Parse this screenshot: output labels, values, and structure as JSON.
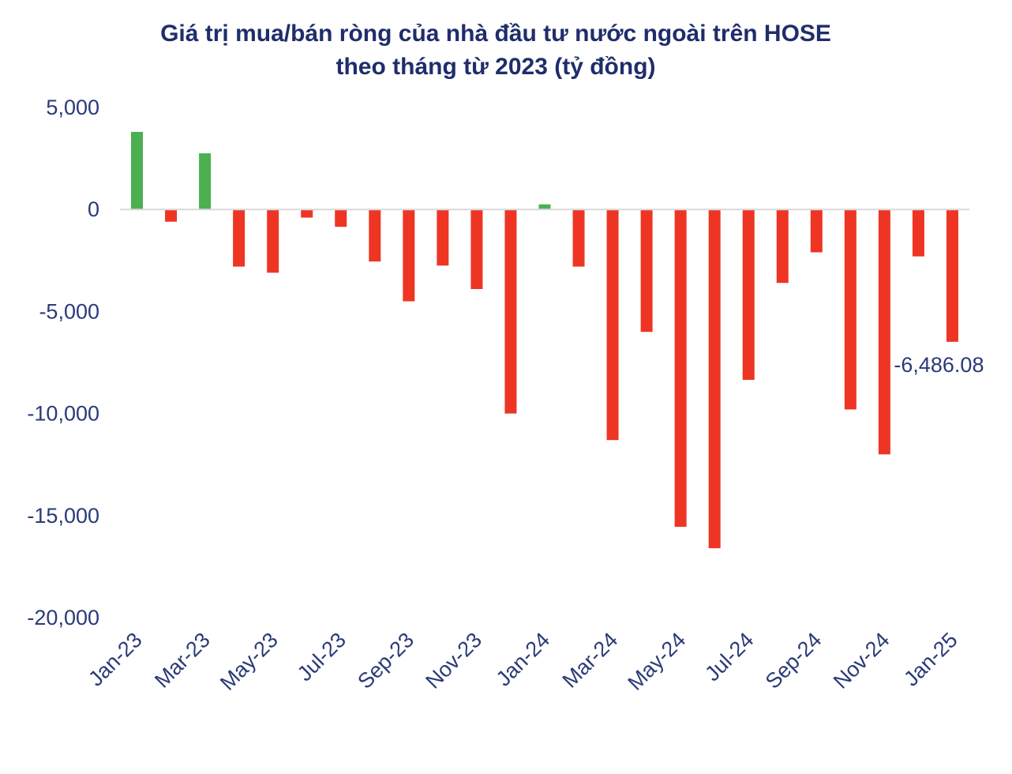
{
  "chart_data": {
    "type": "bar",
    "title_lines": [
      "Giá trị mua/bán ròng của nhà đầu tư nước ngoài trên HOSE",
      "theo tháng từ 2023 (tỷ đồng)"
    ],
    "categories": [
      "Jan-23",
      "Feb-23",
      "Mar-23",
      "Apr-23",
      "May-23",
      "Jun-23",
      "Jul-23",
      "Aug-23",
      "Sep-23",
      "Oct-23",
      "Nov-23",
      "Dec-23",
      "Jan-24",
      "Feb-24",
      "Mar-24",
      "Apr-24",
      "May-24",
      "Jun-24",
      "Jul-24",
      "Aug-24",
      "Sep-24",
      "Oct-24",
      "Nov-24",
      "Dec-24",
      "Jan-25"
    ],
    "x_tick_labels": [
      "Jan-23",
      "Mar-23",
      "May-23",
      "Jul-23",
      "Sep-23",
      "Nov-23",
      "Jan-24",
      "Mar-24",
      "May-24",
      "Jul-24",
      "Sep-24",
      "Nov-24",
      "Jan-25"
    ],
    "values": [
      3800,
      -600,
      2750,
      -2800,
      -3100,
      -400,
      -850,
      -2550,
      -4500,
      -2750,
      -3900,
      -10000,
      250,
      -2800,
      -11300,
      -6000,
      -15550,
      -16600,
      -8350,
      -3600,
      -2100,
      -9800,
      -12000,
      -2300,
      -6486.08
    ],
    "ylim": [
      -20000,
      5000
    ],
    "y_ticks": [
      5000,
      0,
      -5000,
      -10000,
      -15000,
      -20000
    ],
    "y_tick_labels": [
      "5,000",
      "0",
      "-5,000",
      "-10,000",
      "-15,000",
      "-20,000"
    ],
    "data_labels": [
      {
        "category": "Jan-25",
        "text": "-6,486.08"
      }
    ],
    "colors": {
      "positive": "#4caf50",
      "negative": "#ee3524",
      "axis": "#d9d9d9",
      "text": "#2b3a78",
      "title": "#1f2d6b"
    },
    "xlabel": "",
    "ylabel": "",
    "grid": false,
    "legend": "none"
  }
}
